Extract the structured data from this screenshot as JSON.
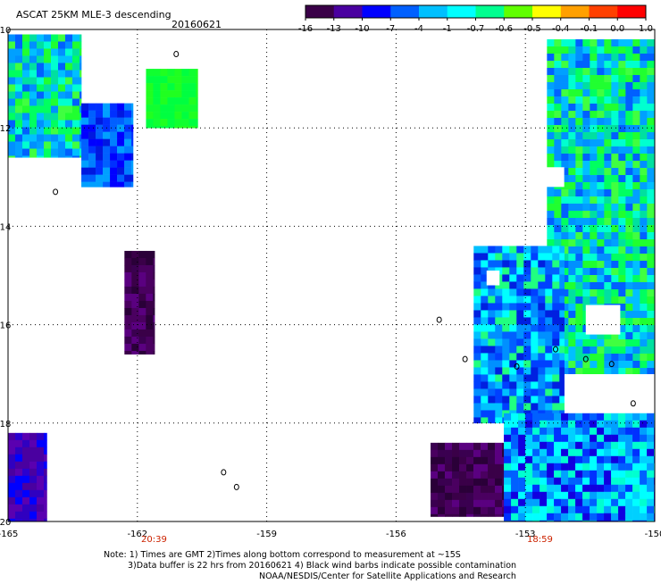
{
  "header": {
    "product": "ASCAT 25KM MLE-3 descending",
    "date": "20160621"
  },
  "colorbar": {
    "ticks": [
      "-16",
      "-13",
      "-10",
      "-7",
      "-4",
      "-1",
      "-0.7",
      "-0.6",
      "-0.5",
      "-0.4",
      "-0.1",
      "0.0",
      "1.0"
    ],
    "stops": [
      "#3a0048",
      "#4a00a0",
      "#0000ff",
      "#0060ff",
      "#00c0ff",
      "#00ffff",
      "#00ff90",
      "#60ff00",
      "#ffff00",
      "#ffa000",
      "#ff4000",
      "#ff0000"
    ]
  },
  "axes": {
    "x_ticks": [
      "-165",
      "-162",
      "-159",
      "-156",
      "-153",
      "-150"
    ],
    "y_ticks": [
      "-10",
      "-12",
      "-14",
      "-16",
      "-18",
      "-20"
    ]
  },
  "pass_times": [
    "20:39",
    "18:59"
  ],
  "footer": {
    "line1": "Note: 1) Times are GMT 2)Times along bottom correspond to measurement at ~15S",
    "line2": "3)Data buffer is 22 hrs from 20160621 4) Black wind barbs indicate possible contamination",
    "line3": "NOAA/NESDIS/Center for Satellite Applications and Research"
  },
  "colors": {
    "time_label": "#cc2200",
    "grid": "#000000"
  },
  "map_data": {
    "lon_range": [
      -165,
      -150
    ],
    "lat_range": [
      -20,
      -10
    ],
    "swaths": [
      {
        "lon": [
          -165,
          -163.3
        ],
        "lat": [
          -12.6,
          -10.1
        ],
        "fill": "green-blue"
      },
      {
        "lon": [
          -163.3,
          -162.1
        ],
        "lat": [
          -13.2,
          -11.5
        ],
        "fill": "blue"
      },
      {
        "lon": [
          -161.8,
          -160.6
        ],
        "lat": [
          -12.0,
          -10.8
        ],
        "fill": "green"
      },
      {
        "lon": [
          -162.3,
          -161.6
        ],
        "lat": [
          -16.6,
          -14.5
        ],
        "fill": "dark-purple"
      },
      {
        "lon": [
          -165,
          -164.1
        ],
        "lat": [
          -20,
          -18.2
        ],
        "fill": "purple-blue"
      },
      {
        "lon": [
          -152.5,
          -150
        ],
        "lat": [
          -17.0,
          -10.2
        ],
        "fill": "green-blue"
      },
      {
        "lon": [
          -154.2,
          -152.1
        ],
        "lat": [
          -18.0,
          -14.4
        ],
        "fill": "blue-green"
      },
      {
        "lon": [
          -155.2,
          -153.3
        ],
        "lat": [
          -19.9,
          -18.4
        ],
        "fill": "dark-purple"
      },
      {
        "lon": [
          -153.5,
          -150
        ],
        "lat": [
          -20,
          -17.8
        ],
        "fill": "blue-cyan"
      }
    ]
  }
}
